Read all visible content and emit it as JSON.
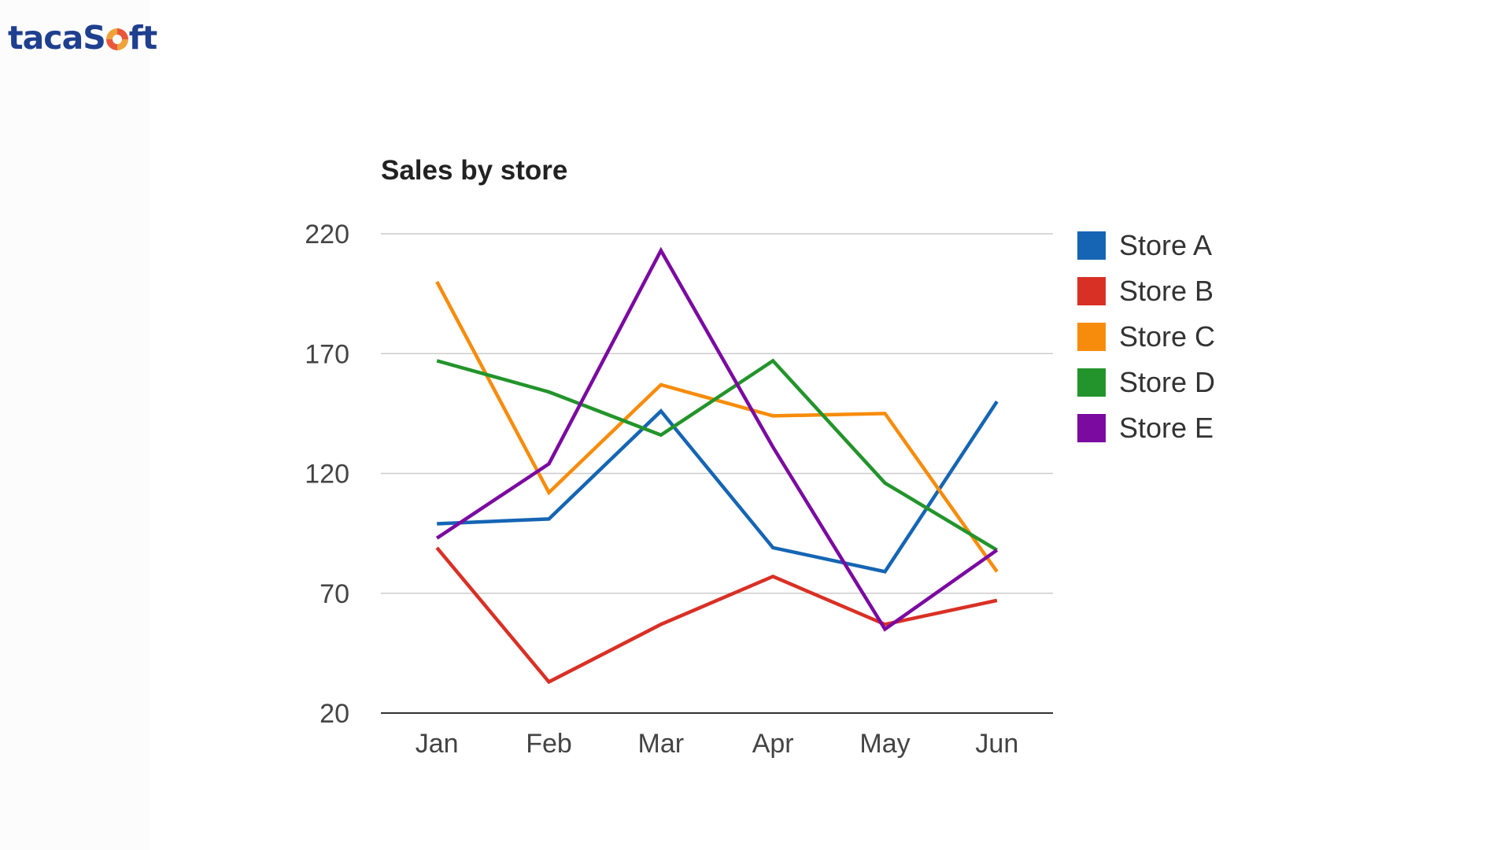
{
  "brand": {
    "name": "tacaSoft",
    "prefix": "tacaS",
    "suffix": "ft"
  },
  "chart_data": {
    "type": "line",
    "title": "Sales by store",
    "xlabel": "",
    "ylabel": "",
    "categories": [
      "Jan",
      "Feb",
      "Mar",
      "Apr",
      "May",
      "Jun"
    ],
    "yticks": [
      220,
      170,
      120,
      70,
      20
    ],
    "ylim": [
      20,
      220
    ],
    "grid": true,
    "legend_position": "right",
    "series": [
      {
        "name": "Store A",
        "color": "#1565b4",
        "values": [
          99,
          101,
          146,
          89,
          79,
          150
        ]
      },
      {
        "name": "Store B",
        "color": "#d93025",
        "values": [
          89,
          33,
          57,
          77,
          57,
          67
        ]
      },
      {
        "name": "Store C",
        "color": "#f78c0c",
        "values": [
          200,
          112,
          157,
          144,
          145,
          79
        ]
      },
      {
        "name": "Store D",
        "color": "#23942b",
        "values": [
          167,
          154,
          136,
          167,
          116,
          88
        ]
      },
      {
        "name": "Store E",
        "color": "#7b0aa1",
        "values": [
          93,
          124,
          213,
          131,
          55,
          88
        ]
      }
    ]
  }
}
